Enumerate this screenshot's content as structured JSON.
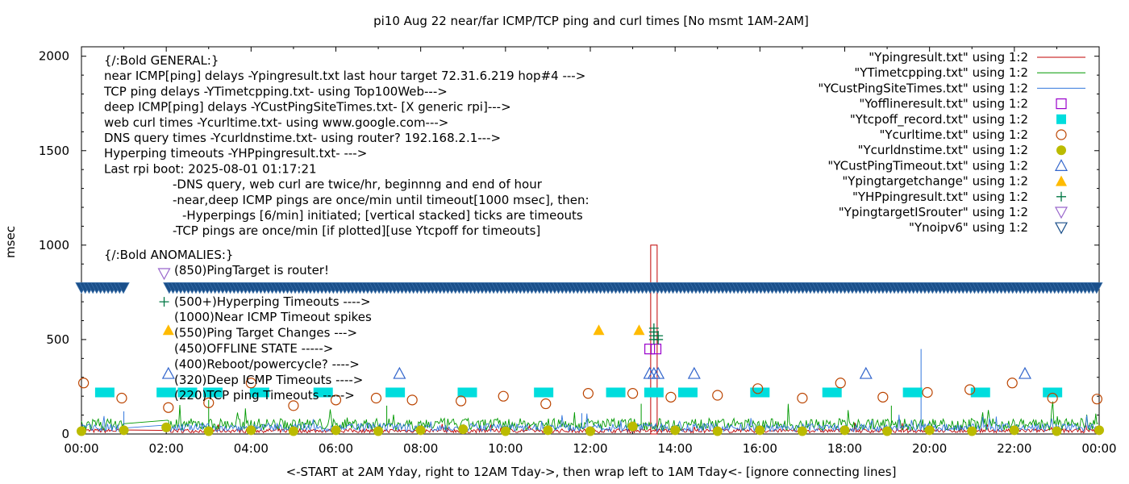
{
  "chart_data": {
    "type": "line",
    "title": "pi10 Aug 22  near/far ICMP/TCP ping and curl times [No msmt 1AM-2AM]",
    "xlabel": "<-START at 2AM Yday, right to 12AM Tday->, then wrap left to 1AM Tday<- [ignore connecting lines]",
    "ylabel": "msec",
    "xlim": [
      0,
      24
    ],
    "ylim": [
      0,
      2050
    ],
    "x_ticks": [
      "00:00",
      "02:00",
      "04:00",
      "06:00",
      "08:00",
      "10:00",
      "12:00",
      "14:00",
      "16:00",
      "18:00",
      "20:00",
      "22:00",
      "00:00"
    ],
    "y_ticks": [
      0,
      500,
      1000,
      1500,
      2000
    ],
    "grid": false,
    "legend_position": "top-right",
    "legend": [
      {
        "label": "\"Ypingresult.txt\" using 1:2",
        "marker": "line",
        "color": "#c00000"
      },
      {
        "label": "\"YTimetcpping.txt\" using 1:2",
        "marker": "line",
        "color": "#009900"
      },
      {
        "label": "\"YCustPingSiteTimes.txt\" using 1:2",
        "marker": "line",
        "color": "#3377dd"
      },
      {
        "label": "\"Yofflineresult.txt\" using 1:2",
        "marker": "open-square",
        "color": "#9900cc"
      },
      {
        "label": "\"Ytcpoff_record.txt\" using 1:2",
        "marker": "filled-square",
        "color": "#00dddd"
      },
      {
        "label": "\"Ycurltime.txt\" using 1:2",
        "marker": "open-circle",
        "color": "#bb4400"
      },
      {
        "label": "\"Ycurldnstime.txt\" using 1:2",
        "marker": "filled-circle",
        "color": "#bbbb00"
      },
      {
        "label": "\"YCustPingTimeout.txt\" using 1:2",
        "marker": "open-triangle",
        "color": "#3366cc"
      },
      {
        "label": "\"Ypingtargetchange\" using 1:2",
        "marker": "filled-triangle",
        "color": "#ffbb00"
      },
      {
        "label": "\"YHPpingresult.txt\" using 1:2",
        "marker": "plus",
        "color": "#007744"
      },
      {
        "label": "\"YpingtargetISrouter\" using 1:2",
        "marker": "open-down-triangle",
        "color": "#9966cc"
      },
      {
        "label": "\"Ynoipv6\" using 1:2",
        "marker": "open-down-triangle",
        "color": "#1a4f8a"
      }
    ],
    "annotations_general": [
      "{/:Bold GENERAL:}",
      "near ICMP[ping] delays -Ypingresult.txt last hour target 72.31.6.219 hop#4 --->",
      "TCP ping delays -YTimetcpping.txt- using Top100Web--->",
      "deep ICMP[ping] delays -YCustPingSiteTimes.txt- [X generic rpi]--->",
      "web curl times -Ycurltime.txt- using www.google.com--->",
      "DNS query times -Ycurldnstime.txt- using router? 192.168.2.1--->",
      "Hyperping timeouts -YHPpingresult.txt- --->",
      "Last rpi boot: 2025-08-01 01:17:21",
      "-DNS query, web curl are twice/hr, beginnng and end of hour",
      "-near,deep ICMP pings are once/min until timeout[1000 msec], then:",
      "-Hyperpings [6/min] initiated; [vertical stacked] ticks are timeouts",
      "-TCP pings are once/min [if plotted][use Ytcpoff for timeouts]"
    ],
    "annotations_anomalies": [
      "{/:Bold ANOMALIES:}",
      "(850)PingTarget is router!",
      "(500+)Hyperping Timeouts ---->",
      "(1000)Near ICMP Timeout spikes",
      "(550)Ping Target Changes --->",
      "(450)OFFLINE STATE ----->",
      "(400)Reboot/powercycle? ---->",
      "(320)Deep ICMP Timeouts ---->",
      "(220)TCP ping Timeouts ----->"
    ],
    "series": [
      {
        "name": "\"Ypingresult.txt\" using 1:2",
        "baseline_ms": 15,
        "spikes": [
          {
            "x": 13.5,
            "y": 1000
          }
        ]
      },
      {
        "name": "\"YTimetcpping.txt\" using 1:2",
        "baseline_ms": 45,
        "spikes": [
          {
            "x": 3.0,
            "y": 180
          },
          {
            "x": 7.2,
            "y": 150
          },
          {
            "x": 13.2,
            "y": 160
          },
          {
            "x": 19.1,
            "y": 150
          }
        ]
      },
      {
        "name": "\"YCustPingSiteTimes.txt\" using 1:2",
        "baseline_ms": 30,
        "spikes": [
          {
            "x": 1.0,
            "y": 120
          },
          {
            "x": 11.8,
            "y": 110
          },
          {
            "x": 19.8,
            "y": 450
          }
        ]
      },
      {
        "name": "\"Yofflineresult.txt\" using 1:2",
        "points": [
          {
            "x": 13.4,
            "y": 450
          },
          {
            "x": 13.55,
            "y": 450
          }
        ]
      },
      {
        "name": "\"Ytcpoff_record.txt\" using 1:2",
        "points": [
          {
            "x": 0.55,
            "y": 220
          },
          {
            "x": 2.0,
            "y": 220
          },
          {
            "x": 2.5,
            "y": 220
          },
          {
            "x": 3.1,
            "y": 220
          },
          {
            "x": 4.2,
            "y": 220
          },
          {
            "x": 5.7,
            "y": 220
          },
          {
            "x": 7.4,
            "y": 220
          },
          {
            "x": 9.1,
            "y": 220
          },
          {
            "x": 10.9,
            "y": 220
          },
          {
            "x": 12.6,
            "y": 220
          },
          {
            "x": 13.5,
            "y": 220
          },
          {
            "x": 14.3,
            "y": 220
          },
          {
            "x": 16.0,
            "y": 220
          },
          {
            "x": 17.7,
            "y": 220
          },
          {
            "x": 19.6,
            "y": 220
          },
          {
            "x": 21.2,
            "y": 220
          },
          {
            "x": 22.9,
            "y": 220
          }
        ]
      },
      {
        "name": "\"Ycurltime.txt\" using 1:2",
        "points": [
          {
            "x": 0.05,
            "y": 270
          },
          {
            "x": 0.95,
            "y": 190
          },
          {
            "x": 2.05,
            "y": 140
          },
          {
            "x": 3.0,
            "y": 165
          },
          {
            "x": 4.0,
            "y": 270
          },
          {
            "x": 5.0,
            "y": 150
          },
          {
            "x": 6.0,
            "y": 180
          },
          {
            "x": 6.95,
            "y": 190
          },
          {
            "x": 7.8,
            "y": 180
          },
          {
            "x": 8.95,
            "y": 175
          },
          {
            "x": 9.95,
            "y": 200
          },
          {
            "x": 10.95,
            "y": 160
          },
          {
            "x": 11.95,
            "y": 215
          },
          {
            "x": 13.0,
            "y": 215
          },
          {
            "x": 13.9,
            "y": 195
          },
          {
            "x": 15.0,
            "y": 205
          },
          {
            "x": 15.95,
            "y": 240
          },
          {
            "x": 17.0,
            "y": 190
          },
          {
            "x": 17.9,
            "y": 270
          },
          {
            "x": 18.9,
            "y": 195
          },
          {
            "x": 19.95,
            "y": 220
          },
          {
            "x": 20.95,
            "y": 235
          },
          {
            "x": 21.95,
            "y": 270
          },
          {
            "x": 22.9,
            "y": 190
          },
          {
            "x": 23.95,
            "y": 185
          }
        ]
      },
      {
        "name": "\"Ycurldnstime.txt\" using 1:2",
        "points": [
          {
            "x": 0.0,
            "y": 15
          },
          {
            "x": 1.0,
            "y": 20
          },
          {
            "x": 2.0,
            "y": 35
          },
          {
            "x": 3.0,
            "y": 15
          },
          {
            "x": 4.0,
            "y": 20
          },
          {
            "x": 5.0,
            "y": 15
          },
          {
            "x": 6.0,
            "y": 20
          },
          {
            "x": 7.0,
            "y": 15
          },
          {
            "x": 8.0,
            "y": 20
          },
          {
            "x": 9.0,
            "y": 25
          },
          {
            "x": 10.0,
            "y": 15
          },
          {
            "x": 11.0,
            "y": 20
          },
          {
            "x": 12.0,
            "y": 15
          },
          {
            "x": 13.0,
            "y": 40
          },
          {
            "x": 14.0,
            "y": 20
          },
          {
            "x": 15.0,
            "y": 15
          },
          {
            "x": 16.0,
            "y": 20
          },
          {
            "x": 17.0,
            "y": 15
          },
          {
            "x": 18.0,
            "y": 20
          },
          {
            "x": 19.0,
            "y": 15
          },
          {
            "x": 20.0,
            "y": 20
          },
          {
            "x": 21.0,
            "y": 15
          },
          {
            "x": 22.0,
            "y": 20
          },
          {
            "x": 23.0,
            "y": 15
          },
          {
            "x": 24.0,
            "y": 20
          }
        ]
      },
      {
        "name": "\"YCustPingTimeout.txt\" using 1:2",
        "points": [
          {
            "x": 2.05,
            "y": 320
          },
          {
            "x": 7.5,
            "y": 320
          },
          {
            "x": 13.4,
            "y": 320
          },
          {
            "x": 13.5,
            "y": 320
          },
          {
            "x": 13.6,
            "y": 320
          },
          {
            "x": 14.45,
            "y": 320
          },
          {
            "x": 18.5,
            "y": 320
          },
          {
            "x": 22.25,
            "y": 320
          }
        ]
      },
      {
        "name": "\"Ypingtargetchange\" using 1:2",
        "points": [
          {
            "x": 2.05,
            "y": 550
          },
          {
            "x": 12.2,
            "y": 550
          },
          {
            "x": 13.15,
            "y": 550
          }
        ]
      },
      {
        "name": "\"YHPpingresult.txt\" using 1:2",
        "points": [
          {
            "x": 1.95,
            "y": 700
          },
          {
            "x": 13.5,
            "y": 500
          },
          {
            "x": 13.5,
            "y": 520
          },
          {
            "x": 13.5,
            "y": 540
          },
          {
            "x": 13.5,
            "y": 560
          },
          {
            "x": 13.6,
            "y": 500
          },
          {
            "x": 13.6,
            "y": 520
          }
        ]
      },
      {
        "name": "\"YpingtargetISrouter\" using 1:2",
        "points": [
          {
            "x": 1.95,
            "y": 850
          }
        ]
      },
      {
        "name": "\"Ynoipv6\" using 1:2",
        "range": [
          0,
          24
        ],
        "y": 775,
        "note": "dense row of markers across the whole day with a gap near 1AM-2AM"
      }
    ]
  }
}
